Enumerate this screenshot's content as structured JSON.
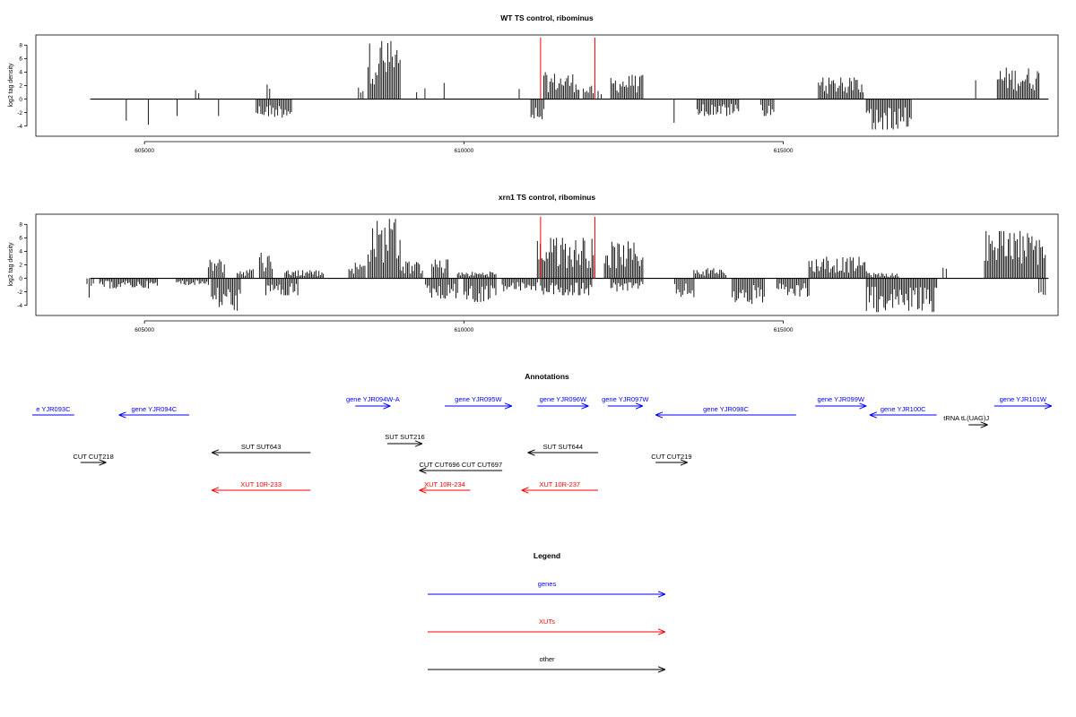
{
  "colors": {
    "gene": "#0000ff",
    "xut": "#ff0000",
    "other": "#000000",
    "bars": "#000000",
    "marker": "#ff0000"
  },
  "chart_data": [
    {
      "type": "bar",
      "title": "WT TS control, ribominus",
      "ylabel": "log2 tag density",
      "xlim": [
        603300,
        619300
      ],
      "ylim": [
        -5.5,
        9.5
      ],
      "xticks": [
        605000,
        610000,
        615000
      ],
      "xtick_labels": [
        "605000",
        "610000",
        "615000"
      ],
      "yticks": [
        -4,
        -2,
        0,
        2,
        4,
        6,
        8
      ],
      "ytick_labels": [
        "-4",
        "-2",
        "0",
        "2",
        "4",
        "6",
        "8"
      ],
      "grid": false,
      "markers": [
        611200,
        612050
      ],
      "signal_regions": [
        {
          "start": 604700,
          "end": 604730,
          "max": -3.2
        },
        {
          "start": 605050,
          "end": 605070,
          "max": -3.8
        },
        {
          "start": 605500,
          "end": 605520,
          "max": -2.5
        },
        {
          "start": 605800,
          "end": 605850,
          "max": 1.8
        },
        {
          "start": 606150,
          "end": 606170,
          "max": -2.5
        },
        {
          "start": 606750,
          "end": 607300,
          "max": -2.8
        },
        {
          "start": 606920,
          "end": 606960,
          "max": 2.8
        },
        {
          "start": 608350,
          "end": 608420,
          "max": 2.2
        },
        {
          "start": 608500,
          "end": 609000,
          "max": 8.6
        },
        {
          "start": 609250,
          "end": 609270,
          "max": 1.0
        },
        {
          "start": 609380,
          "end": 609400,
          "max": 1.6
        },
        {
          "start": 609680,
          "end": 609700,
          "max": 2.4
        },
        {
          "start": 610850,
          "end": 610880,
          "max": 1.5
        },
        {
          "start": 611050,
          "end": 611250,
          "max": -3.0
        },
        {
          "start": 611250,
          "end": 611800,
          "max": 4.0
        },
        {
          "start": 611870,
          "end": 612050,
          "max": 2.0
        },
        {
          "start": 612100,
          "end": 612150,
          "max": 1.5
        },
        {
          "start": 612300,
          "end": 612800,
          "max": 3.6
        },
        {
          "start": 613280,
          "end": 613300,
          "max": -3.5
        },
        {
          "start": 613650,
          "end": 614300,
          "max": -2.5
        },
        {
          "start": 614650,
          "end": 614850,
          "max": -2.5
        },
        {
          "start": 615550,
          "end": 616250,
          "max": 3.2
        },
        {
          "start": 616300,
          "end": 617000,
          "max": -4.5
        },
        {
          "start": 618000,
          "end": 618020,
          "max": 2.8
        },
        {
          "start": 618350,
          "end": 619000,
          "max": 4.8
        }
      ]
    },
    {
      "type": "bar",
      "title": "xrn1 TS control, ribominus",
      "ylabel": "log2 tag density",
      "xlim": [
        603300,
        619300
      ],
      "ylim": [
        -5.5,
        9.5
      ],
      "xticks": [
        605000,
        610000,
        615000
      ],
      "xtick_labels": [
        "605000",
        "610000",
        "615000"
      ],
      "yticks": [
        -4,
        -2,
        0,
        2,
        4,
        6,
        8
      ],
      "ytick_labels": [
        "-4",
        "-2",
        "0",
        "2",
        "4",
        "6",
        "8"
      ],
      "grid": false,
      "markers": [
        611200,
        612050
      ],
      "signal_regions": [
        {
          "start": 604100,
          "end": 604200,
          "max": -3.0
        },
        {
          "start": 604300,
          "end": 605200,
          "max": -1.5
        },
        {
          "start": 605500,
          "end": 606000,
          "max": -1.0
        },
        {
          "start": 606000,
          "end": 606250,
          "max": 3.0
        },
        {
          "start": 606050,
          "end": 606500,
          "max": -4.8
        },
        {
          "start": 606450,
          "end": 606700,
          "max": 1.5
        },
        {
          "start": 606800,
          "end": 607000,
          "max": 3.8
        },
        {
          "start": 606900,
          "end": 607400,
          "max": -2.5
        },
        {
          "start": 607200,
          "end": 607800,
          "max": 1.2
        },
        {
          "start": 608200,
          "end": 608450,
          "max": 2.5
        },
        {
          "start": 608500,
          "end": 609000,
          "max": 8.8
        },
        {
          "start": 609000,
          "end": 609350,
          "max": 2.5
        },
        {
          "start": 609400,
          "end": 609900,
          "max": -3.0
        },
        {
          "start": 609500,
          "end": 609750,
          "max": 2.8
        },
        {
          "start": 609900,
          "end": 610500,
          "max": 1.0
        },
        {
          "start": 610000,
          "end": 610500,
          "max": -3.5
        },
        {
          "start": 610600,
          "end": 611150,
          "max": -2.0
        },
        {
          "start": 611150,
          "end": 612050,
          "max": 6.0
        },
        {
          "start": 611200,
          "end": 612000,
          "max": -2.5
        },
        {
          "start": 612200,
          "end": 612800,
          "max": 5.5
        },
        {
          "start": 612300,
          "end": 612800,
          "max": -2.0
        },
        {
          "start": 613300,
          "end": 613600,
          "max": -3.0
        },
        {
          "start": 613600,
          "end": 614100,
          "max": 1.5
        },
        {
          "start": 614200,
          "end": 614700,
          "max": -3.8
        },
        {
          "start": 614900,
          "end": 615400,
          "max": -3.0
        },
        {
          "start": 615400,
          "end": 616300,
          "max": 3.2
        },
        {
          "start": 616300,
          "end": 616800,
          "max": 0.8
        },
        {
          "start": 616300,
          "end": 617400,
          "max": -5.0
        },
        {
          "start": 617500,
          "end": 617550,
          "max": 2.0
        },
        {
          "start": 618150,
          "end": 619100,
          "max": 7.0
        },
        {
          "start": 619000,
          "end": 619100,
          "max": -2.8
        }
      ]
    }
  ],
  "annotations": {
    "title": "Annotations",
    "items": [
      {
        "label": "e YJR093C",
        "kind": "gene",
        "dir": "none",
        "start": 603200,
        "end": 603900,
        "row": "upper"
      },
      {
        "label": "gene YJR094C",
        "kind": "gene",
        "dir": "left",
        "start": 604600,
        "end": 605700,
        "row": "upper"
      },
      {
        "label": "gene YJR094W-A",
        "kind": "gene",
        "dir": "right",
        "start": 608300,
        "end": 608850,
        "row": "upper2"
      },
      {
        "label": "gene YJR095W",
        "kind": "gene",
        "dir": "right",
        "start": 609700,
        "end": 610750,
        "row": "upper2"
      },
      {
        "label": "gene YJR096W",
        "kind": "gene",
        "dir": "right",
        "start": 611150,
        "end": 611950,
        "row": "upper2"
      },
      {
        "label": "gene YJR097W",
        "kind": "gene",
        "dir": "right",
        "start": 612250,
        "end": 612800,
        "row": "upper2"
      },
      {
        "label": "gene YJR098C",
        "kind": "gene",
        "dir": "left",
        "start": 613000,
        "end": 615200,
        "row": "upper"
      },
      {
        "label": "gene YJR099W",
        "kind": "gene",
        "dir": "right",
        "start": 615500,
        "end": 616300,
        "row": "upper2"
      },
      {
        "label": "gene YJR100C",
        "kind": "gene",
        "dir": "left",
        "start": 616350,
        "end": 617400,
        "row": "upper"
      },
      {
        "label": "gene YJR101W",
        "kind": "gene",
        "dir": "right",
        "start": 618300,
        "end": 619200,
        "row": "upper2"
      },
      {
        "label": "tRNA tL(UAG)J",
        "kind": "other",
        "dir": "right",
        "start": 617900,
        "end": 618200,
        "row": "trna"
      },
      {
        "label": "SUT SUT643",
        "kind": "other",
        "dir": "left",
        "start": 606050,
        "end": 607600,
        "row": "mid"
      },
      {
        "label": "SUT SUT216",
        "kind": "other",
        "dir": "right",
        "start": 608800,
        "end": 609350,
        "row": "mid2"
      },
      {
        "label": "SUT SUT644",
        "kind": "other",
        "dir": "left",
        "start": 611000,
        "end": 612100,
        "row": "mid"
      },
      {
        "label": "CUT CUT218",
        "kind": "other",
        "dir": "right",
        "start": 604000,
        "end": 604400,
        "row": "low"
      },
      {
        "label": "CUT CUT219",
        "kind": "other",
        "dir": "right",
        "start": 613000,
        "end": 613500,
        "row": "low"
      },
      {
        "label": "CUT CUT696 CUT CUT697",
        "kind": "other",
        "dir": "left",
        "start": 609300,
        "end": 610600,
        "row": "low2"
      },
      {
        "label": "XUT 10R-233",
        "kind": "xut",
        "dir": "left",
        "start": 606050,
        "end": 607600,
        "row": "xut"
      },
      {
        "label": "XUT 10R-234",
        "kind": "xut",
        "dir": "left",
        "start": 609300,
        "end": 610100,
        "row": "xut"
      },
      {
        "label": "XUT 10R-237",
        "kind": "xut",
        "dir": "left",
        "start": 610900,
        "end": 612100,
        "row": "xut"
      }
    ]
  },
  "legend": {
    "title": "Legend",
    "entries": [
      {
        "label": "genes",
        "kind": "gene"
      },
      {
        "label": "XUTs",
        "kind": "xut"
      },
      {
        "label": "other",
        "kind": "other"
      }
    ]
  }
}
